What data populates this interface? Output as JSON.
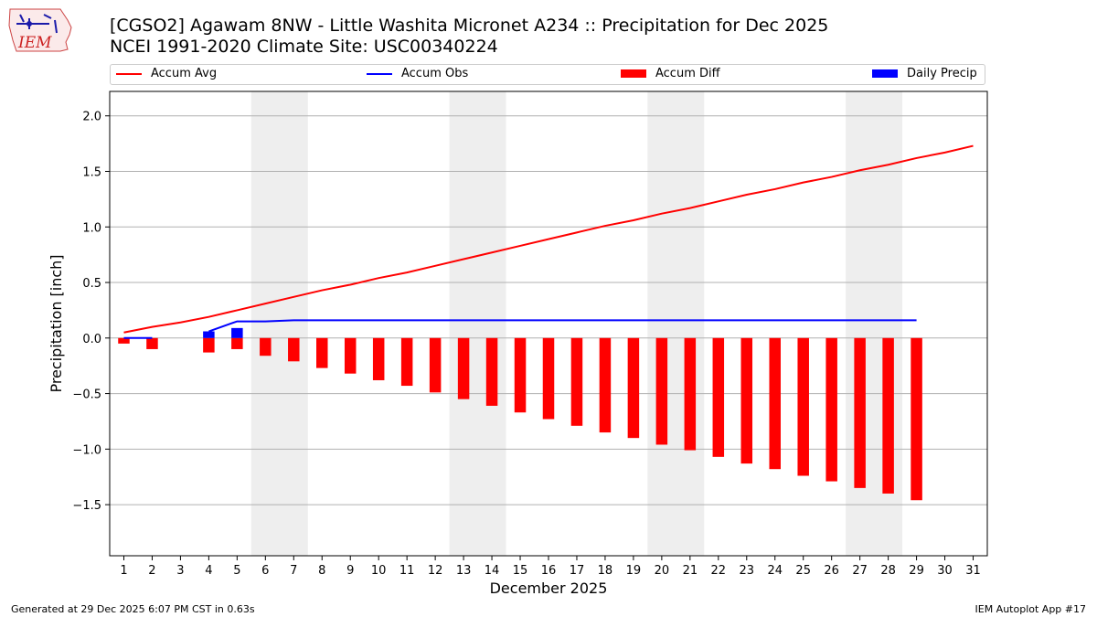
{
  "header": {
    "title_line1": "[CGSO2] Agawam 8NW - Little Washita Micronet A234 :: Precipitation for Dec 2025",
    "title_line2": "NCEI 1991-2020 Climate Site: USC00340224",
    "logo_text": "IEM"
  },
  "footer": {
    "generated": "Generated at 29 Dec 2025 6:07 PM CST in 0.63s",
    "app": "IEM Autoplot App #17"
  },
  "colors": {
    "accum_avg": "#ff0000",
    "accum_obs": "#0000ff",
    "accum_diff": "#ff0000",
    "daily_precip": "#0000ff",
    "weekend_shade": "#eeeeee",
    "grid": "#b0b0b0"
  },
  "chart_data": {
    "type": "bar",
    "xlabel": "December 2025",
    "ylabel": "Precipitation [inch]",
    "xlim": [
      0.5,
      31.5
    ],
    "ylim": [
      -1.96,
      2.22
    ],
    "yticks": [
      -1.5,
      -1.0,
      -0.5,
      0.0,
      0.5,
      1.0,
      1.5,
      2.0
    ],
    "ytick_labels": [
      "−1.5",
      "−1.0",
      "−0.5",
      "0.0",
      "0.5",
      "1.0",
      "1.5",
      "2.0"
    ],
    "days": [
      1,
      2,
      3,
      4,
      5,
      6,
      7,
      8,
      9,
      10,
      11,
      12,
      13,
      14,
      15,
      16,
      17,
      18,
      19,
      20,
      21,
      22,
      23,
      24,
      25,
      26,
      27,
      28,
      29,
      30,
      31
    ],
    "grid": "horizontal",
    "legend_position": "top",
    "weekend_shading": [
      [
        5.5,
        7.5
      ],
      [
        12.5,
        14.5
      ],
      [
        19.5,
        21.5
      ],
      [
        26.5,
        28.5
      ]
    ],
    "series": [
      {
        "name": "Accum Avg",
        "kind": "line",
        "x": [
          1,
          2,
          3,
          4,
          5,
          6,
          7,
          8,
          9,
          10,
          11,
          12,
          13,
          14,
          15,
          16,
          17,
          18,
          19,
          20,
          21,
          22,
          23,
          24,
          25,
          26,
          27,
          28,
          29,
          30,
          31
        ],
        "values": [
          0.05,
          0.1,
          0.14,
          0.19,
          0.25,
          0.31,
          0.37,
          0.43,
          0.48,
          0.54,
          0.59,
          0.65,
          0.71,
          0.77,
          0.83,
          0.89,
          0.95,
          1.01,
          1.06,
          1.12,
          1.17,
          1.23,
          1.29,
          1.34,
          1.4,
          1.45,
          1.51,
          1.56,
          1.62,
          1.67,
          1.73
        ]
      },
      {
        "name": "Accum Obs",
        "kind": "line",
        "x": [
          1,
          2,
          3,
          4,
          5,
          6,
          7,
          8,
          9,
          10,
          11,
          12,
          13,
          14,
          15,
          16,
          17,
          18,
          19,
          20,
          21,
          22,
          23,
          24,
          25,
          26,
          27,
          28,
          29
        ],
        "values": [
          0.0,
          0.0,
          null,
          0.06,
          0.15,
          0.15,
          0.16,
          0.16,
          0.16,
          0.16,
          0.16,
          0.16,
          0.16,
          0.16,
          0.16,
          0.16,
          0.16,
          0.16,
          0.16,
          0.16,
          0.16,
          0.16,
          0.16,
          0.16,
          0.16,
          0.16,
          0.16,
          0.16,
          0.16
        ]
      },
      {
        "name": "Accum Diff",
        "kind": "bar",
        "x": [
          1,
          2,
          4,
          5,
          6,
          7,
          8,
          9,
          10,
          11,
          12,
          13,
          14,
          15,
          16,
          17,
          18,
          19,
          20,
          21,
          22,
          23,
          24,
          25,
          26,
          27,
          28,
          29
        ],
        "values": [
          -0.05,
          -0.1,
          -0.13,
          -0.1,
          -0.16,
          -0.21,
          -0.27,
          -0.32,
          -0.38,
          -0.43,
          -0.49,
          -0.55,
          -0.61,
          -0.67,
          -0.73,
          -0.79,
          -0.85,
          -0.9,
          -0.96,
          -1.01,
          -1.07,
          -1.13,
          -1.18,
          -1.24,
          -1.29,
          -1.35,
          -1.4,
          -1.46
        ]
      },
      {
        "name": "Daily Precip",
        "kind": "bar",
        "x": [
          4,
          5
        ],
        "values": [
          0.06,
          0.09
        ]
      }
    ]
  }
}
